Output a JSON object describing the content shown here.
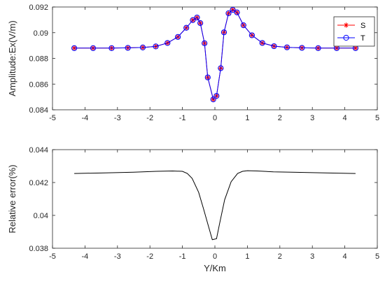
{
  "chart_data": [
    {
      "type": "line",
      "ylabel": "Amplitude:Ex(V/m)",
      "xlabel": "",
      "xlim": [
        -5,
        5
      ],
      "ylim": [
        0.084,
        0.092
      ],
      "xticks": [
        -5,
        -4,
        -3,
        -2,
        -1,
        0,
        1,
        2,
        3,
        4,
        5
      ],
      "yticks": [
        0.084,
        0.086,
        0.088,
        0.09,
        0.092
      ],
      "ytick_labels": [
        "0.084",
        "0.086",
        "0.088",
        "0.09",
        "0.092"
      ],
      "grid": false,
      "legend": "top-right",
      "x": [
        -4.33,
        -3.75,
        -3.18,
        -2.68,
        -2.22,
        -1.82,
        -1.46,
        -1.14,
        -0.88,
        -0.68,
        -0.55,
        -0.45,
        -0.32,
        -0.22,
        -0.05,
        0.05,
        0.18,
        0.28,
        0.42,
        0.55,
        0.68,
        0.88,
        1.14,
        1.46,
        1.82,
        2.22,
        2.68,
        3.18,
        3.75,
        4.33
      ],
      "series": [
        {
          "name": "S",
          "color": "#ff0000",
          "marker": "star",
          "values": [
            0.0888,
            0.0888,
            0.0888,
            0.08882,
            0.08885,
            0.08893,
            0.0892,
            0.08967,
            0.09038,
            0.09098,
            0.09118,
            0.09075,
            0.08918,
            0.08652,
            0.08481,
            0.08508,
            0.08724,
            0.09003,
            0.09151,
            0.09178,
            0.09158,
            0.09058,
            0.0898,
            0.0892,
            0.08895,
            0.08886,
            0.08882,
            0.0888,
            0.0888,
            0.0888
          ]
        },
        {
          "name": "T",
          "color": "#0000ff",
          "marker": "circle",
          "values": [
            0.0888,
            0.0888,
            0.0888,
            0.08882,
            0.08885,
            0.08893,
            0.0892,
            0.08967,
            0.09038,
            0.09098,
            0.09118,
            0.09075,
            0.08918,
            0.08652,
            0.08481,
            0.08508,
            0.08724,
            0.09003,
            0.09151,
            0.09178,
            0.09158,
            0.09058,
            0.0898,
            0.0892,
            0.08895,
            0.08886,
            0.08882,
            0.0888,
            0.0888,
            0.0888
          ]
        }
      ]
    },
    {
      "type": "line",
      "ylabel": "Relative error(%)",
      "xlabel": "Y/Km",
      "xlim": [
        -5,
        5
      ],
      "ylim": [
        0.038,
        0.044
      ],
      "xticks": [
        -5,
        -4,
        -3,
        -2,
        -1,
        0,
        1,
        2,
        3,
        4,
        5
      ],
      "yticks": [
        0.038,
        0.04,
        0.042,
        0.044
      ],
      "ytick_labels": [
        "0.038",
        "0.04",
        "0.042",
        "0.044"
      ],
      "grid": false,
      "series": [
        {
          "color": "#000000",
          "x": [
            -4.33,
            -3.5,
            -2.5,
            -1.8,
            -1.3,
            -1.0,
            -0.85,
            -0.7,
            -0.5,
            -0.35,
            -0.2,
            -0.08,
            0.05,
            0.15,
            0.3,
            0.5,
            0.7,
            0.85,
            1.0,
            1.3,
            1.8,
            2.5,
            3.5,
            4.33
          ],
          "values": [
            0.04255,
            0.04258,
            0.04263,
            0.04268,
            0.0427,
            0.04268,
            0.04255,
            0.04225,
            0.0414,
            0.0404,
            0.03935,
            0.03852,
            0.03858,
            0.03955,
            0.04095,
            0.04205,
            0.04255,
            0.04268,
            0.04272,
            0.0427,
            0.04265,
            0.04262,
            0.04258,
            0.04255
          ]
        }
      ]
    }
  ]
}
